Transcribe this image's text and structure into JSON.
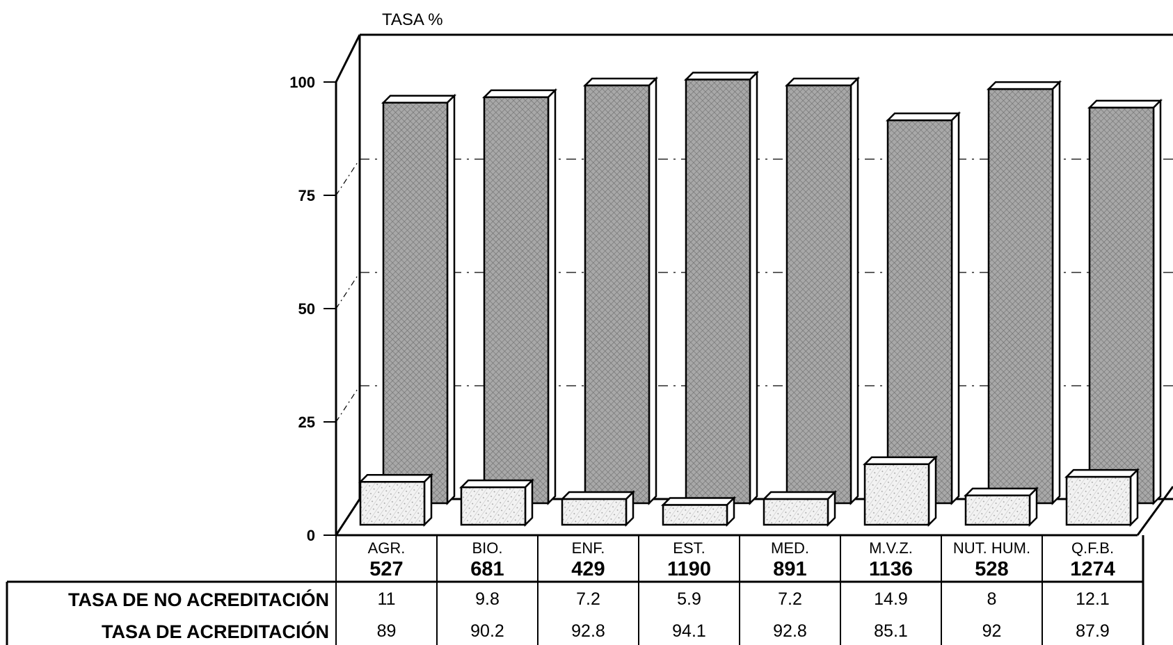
{
  "chart_data": {
    "type": "bar",
    "ylabel": "TASA %",
    "ylim": [
      0,
      100
    ],
    "yticks": [
      0,
      25,
      50,
      75,
      100
    ],
    "categories": [
      "AGR.",
      "BIO.",
      "ENF.",
      "EST.",
      "MED.",
      "M.V.Z.",
      "NUT. HUM.",
      "Q.F.B."
    ],
    "counts": [
      "527",
      "681",
      "429",
      "1190",
      "891",
      "1136",
      "528",
      "1274"
    ],
    "series": [
      {
        "name": "TASA DE NO ACREDITACIÓN",
        "values": [
          11,
          9.8,
          7.2,
          5.9,
          7.2,
          14.9,
          8,
          12.1
        ],
        "labels": [
          "11",
          "9.8",
          "7.2",
          "5.9",
          "7.2",
          "14.9",
          "8",
          "12.1"
        ]
      },
      {
        "name": "TASA DE ACREDITACIÓN",
        "values": [
          89,
          90.2,
          92.8,
          94.1,
          92.8,
          85.1,
          92,
          87.9
        ],
        "labels": [
          "89",
          "90.2",
          "92.8",
          "94.1",
          "92.8",
          "85.1",
          "92",
          "87.9"
        ]
      }
    ],
    "grid": true,
    "style": "3d"
  },
  "colors": {
    "back_bar": "#9e9e9e",
    "front_bar": "#e8e8e8",
    "line": "#000000"
  }
}
